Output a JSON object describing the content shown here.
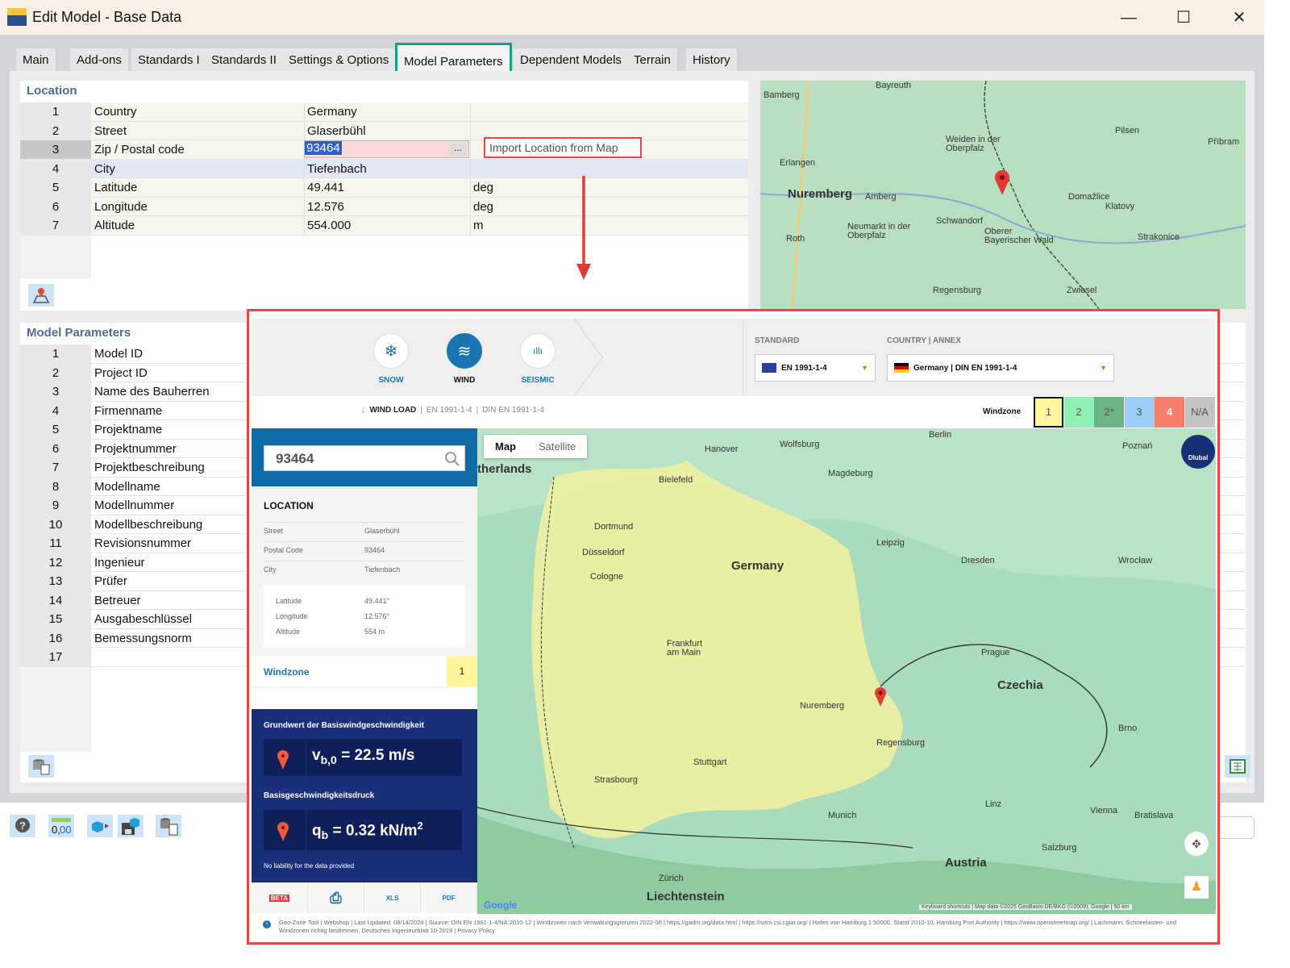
{
  "window": {
    "title": "Edit Model - Base Data",
    "minimize": "—",
    "maximize": "☐",
    "close": "✕"
  },
  "tabs": [
    "Main",
    "Add-ons",
    "Standards I",
    "Standards II",
    "Settings & Options",
    "Model Parameters",
    "Dependent Models",
    "Terrain",
    "History"
  ],
  "active_tab": "Model Parameters",
  "location": {
    "header": "Location",
    "rows": [
      {
        "n": "1",
        "label": "Country",
        "value": "Germany",
        "unit": ""
      },
      {
        "n": "2",
        "label": "Street",
        "value": "Glaserbühl",
        "unit": ""
      },
      {
        "n": "3",
        "label": "Zip / Postal code",
        "value": "93464",
        "unit": ""
      },
      {
        "n": "4",
        "label": "City",
        "value": "Tiefenbach",
        "unit": ""
      },
      {
        "n": "5",
        "label": "Latitude",
        "value": "49.441",
        "unit": "deg"
      },
      {
        "n": "6",
        "label": "Longitude",
        "value": "12.576",
        "unit": "deg"
      },
      {
        "n": "7",
        "label": "Altitude",
        "value": "554.000",
        "unit": "m"
      }
    ],
    "browse_button": "...",
    "import_button": "Import Location from Map"
  },
  "model_parameters": {
    "header": "Model Parameters",
    "rows": [
      {
        "n": "1",
        "label": "Model ID"
      },
      {
        "n": "2",
        "label": "Project ID"
      },
      {
        "n": "3",
        "label": "Name des Bauherren"
      },
      {
        "n": "4",
        "label": "Firmenname"
      },
      {
        "n": "5",
        "label": "Projektname"
      },
      {
        "n": "6",
        "label": "Projektnummer"
      },
      {
        "n": "7",
        "label": "Projektbeschreibung"
      },
      {
        "n": "8",
        "label": "Modellname"
      },
      {
        "n": "9",
        "label": "Modellnummer"
      },
      {
        "n": "10",
        "label": "Modellbeschreibung"
      },
      {
        "n": "11",
        "label": "Revisionsnummer"
      },
      {
        "n": "12",
        "label": "Ingenieur"
      },
      {
        "n": "13",
        "label": "Prüfer"
      },
      {
        "n": "14",
        "label": "Betreuer"
      },
      {
        "n": "15",
        "label": "Ausgabeschlüssel"
      },
      {
        "n": "16",
        "label": "Bemessungsnorm"
      },
      {
        "n": "17",
        "label": ""
      }
    ]
  },
  "small_map": {
    "labels": [
      "Bayreuth",
      "Bamberg",
      "Erlangen",
      "Nuremberg",
      "Amberg",
      "Weiden in der Oberpfalz",
      "Pilsen",
      "Domažlice",
      "Klatovy",
      "Schwandorf",
      "Roth",
      "Neumarkt in der Oberpfalz",
      "Oberer Bayerischer Wald",
      "Regensburg",
      "Zwiesel",
      "Strakonice",
      "Příbram"
    ]
  },
  "geo_tool": {
    "modes": [
      {
        "label": "SNOW",
        "icon": "snowflake-icon"
      },
      {
        "label": "WIND",
        "icon": "wind-icon"
      },
      {
        "label": "SEISMIC",
        "icon": "seismic-icon"
      }
    ],
    "active_mode": "WIND",
    "standard_label": "STANDARD",
    "standard_value": "EN 1991-1-4",
    "country_label": "COUNTRY | ANNEX",
    "country_value": "Germany | DIN EN 1991-1-4",
    "breadcrumb": [
      "WIND LOAD",
      "EN 1991-1-4",
      "DIN EN 1991-1-4"
    ],
    "windzone_label": "Windzone",
    "zones": [
      {
        "label": "1",
        "color": "#fff59d"
      },
      {
        "label": "2",
        "color": "#8ef0b4"
      },
      {
        "label": "2*",
        "color": "#6cb484"
      },
      {
        "label": "3",
        "color": "#9ccdf5"
      },
      {
        "label": "4",
        "color": "#f87d6a"
      },
      {
        "label": "N/A",
        "color": "#c4c4c4"
      }
    ],
    "search_value": "93464",
    "location_title": "LOCATION",
    "street_label": "Street",
    "street": "Glaserbühl",
    "postal_label": "Postal Code",
    "postal": "93464",
    "city_label": "City",
    "city": "Tiefenbach",
    "lat_label": "Latitude",
    "lat": "49.441°",
    "lon_label": "Longitude",
    "lon": "12.576°",
    "alt_label": "Altitude",
    "alt": "554 m",
    "windzone_row_label": "Windzone",
    "windzone_value": "1",
    "vb_title": "Grundwert der Basiswindgeschwindigkeit",
    "vb_symbol": "v",
    "vb_sub": "b,0",
    "vb_value": "= 22.5 m/s",
    "qb_title": "Basisgeschwindigkeitsdruck",
    "qb_symbol": "q",
    "qb_sub": "b",
    "qb_value": "= 0.32 kN/m",
    "qb_sup": "2",
    "disclaimer": "No liability for the data provided",
    "export_icons": [
      "BETA",
      "print",
      "XLS",
      "PDF"
    ],
    "map_tabs": [
      "Map",
      "Satellite"
    ],
    "map_labels": [
      "therlands",
      "Hanover",
      "Wolfsburg",
      "Berlin",
      "Poznań",
      "Bielefeld",
      "Magdeburg",
      "Dortmund",
      "Düsseldorf",
      "Cologne",
      "Leipzig",
      "Germany",
      "Dresden",
      "Wrocław",
      "Frankfurt am Main",
      "Prague",
      "Czechia",
      "Nuremberg",
      "Regensburg",
      "Stuttgart",
      "Munich",
      "Vienna",
      "Bratislava",
      "Austria",
      "Liechtenstein",
      "Zürich",
      "Brno",
      "Linz",
      "Salzburg",
      "Strasbourg"
    ],
    "map_attribution": "Keyboard shortcuts | Map data ©2025 GeoBasis-DE/BKG (©2009), Google | 50 km",
    "logo": "Dlubal",
    "footer": "Geo-Zone Tool | Webshop | Last Updated: 08/14/2024 | Source: DIN EN 1991-1-4/NA:2010-12 | Windzonen nach Verwaltungsgrenzen 2022-06 | https://gadm.org/data.html | https://srtm.csi.cgiar.org/ | Hafen von Hamburg 1:50000, Stand 2010-10, Hamburg Port Authority | https://www.openstreetmap.org/ | Lachmann, Schneelasten- und Windzonen richtig bestimmen, Deutsches Ingenieurblatt 10-2019 | Privacy Policy"
  },
  "colors": {
    "accent_tab": "#16a085",
    "highlight": "#ef4444",
    "tool_blue": "#1b75b3",
    "panel_navy": "#1a2f7a"
  }
}
